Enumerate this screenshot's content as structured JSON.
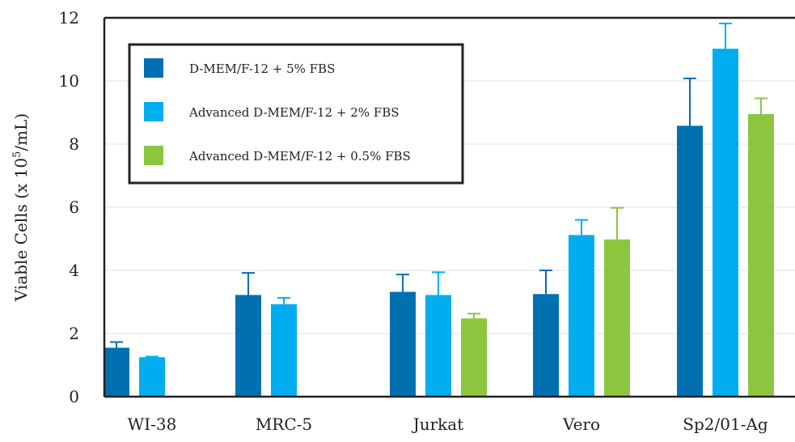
{
  "chart_data": {
    "type": "bar",
    "categories": [
      "WI-38",
      "MRC-5",
      "Jurkat",
      "Vero",
      "Sp2/01-Ag"
    ],
    "series": [
      {
        "name": "D-MEM/F-12 + 5% FBS",
        "color": "#0070b0",
        "values": [
          1.55,
          3.22,
          3.32,
          3.25,
          8.58
        ],
        "errors": [
          0.18,
          0.7,
          0.55,
          0.75,
          1.5
        ]
      },
      {
        "name": "Advanced D-MEM/F-12 + 2% FBS",
        "color": "#00adef",
        "values": [
          1.25,
          2.93,
          3.22,
          5.12,
          11.02
        ],
        "errors": [
          0.02,
          0.2,
          0.72,
          0.48,
          0.8
        ]
      },
      {
        "name": "Advanced D-MEM/F-12 + 0.5% FBS",
        "color": "#8cc63f",
        "values": [
          null,
          null,
          2.48,
          4.98,
          8.95
        ],
        "errors": [
          null,
          null,
          0.15,
          1.0,
          0.5
        ]
      }
    ],
    "ylabel_prefix": "Viable Cells (x 10",
    "ylabel_sup": "5",
    "ylabel_suffix": "/mL)",
    "xlabel": "",
    "title": "",
    "ylim": [
      0,
      12
    ],
    "yticks": [
      "0",
      "2",
      "4",
      "6",
      "8",
      "10",
      "12"
    ],
    "grid": true,
    "legend_position": "top-left"
  }
}
